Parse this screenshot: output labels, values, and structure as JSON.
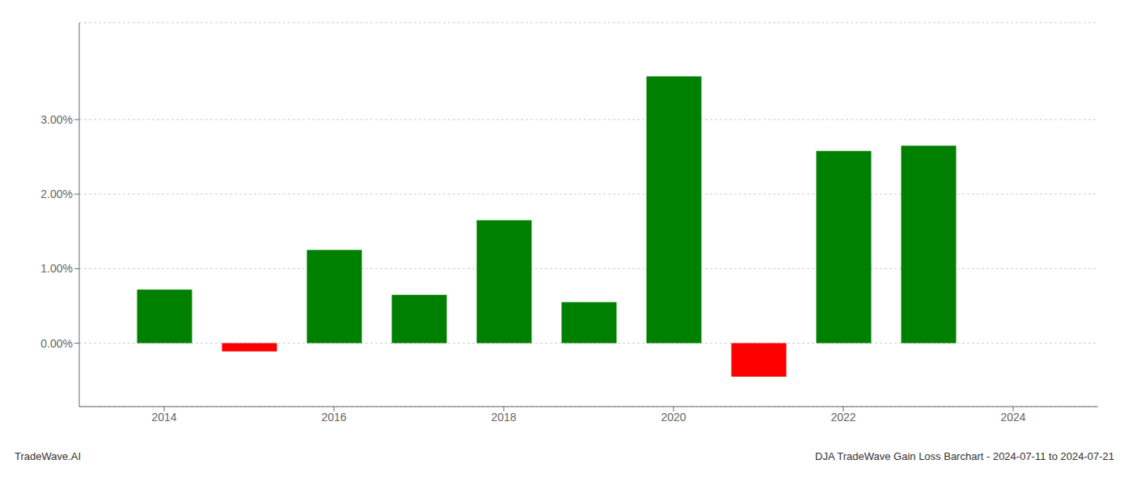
{
  "chart_data": {
    "type": "bar",
    "x": [
      2014,
      2015,
      2016,
      2017,
      2018,
      2019,
      2020,
      2021,
      2022,
      2023
    ],
    "values": [
      0.0072,
      -0.0011,
      0.0125,
      0.0065,
      0.0165,
      0.0055,
      0.0358,
      -0.0045,
      0.0258,
      0.0265
    ],
    "colors": [
      "#008000",
      "#ff0000",
      "#008000",
      "#008000",
      "#008000",
      "#008000",
      "#008000",
      "#ff0000",
      "#008000",
      "#008000"
    ],
    "xlim": [
      2013,
      2025
    ],
    "xticks": [
      2014,
      2016,
      2018,
      2020,
      2022,
      2024
    ],
    "ylim": [
      -0.0085,
      0.043
    ],
    "yticks": [
      {
        "value": 0.0,
        "label": "0.00%"
      },
      {
        "value": 0.01,
        "label": "1.00%"
      },
      {
        "value": 0.02,
        "label": "2.00%"
      },
      {
        "value": 0.03,
        "label": "3.00%"
      }
    ],
    "grid": "y",
    "annotations": [
      "TradeWave.AI",
      "DJA TradeWave Gain Loss Barchart - 2024-07-11 to 2024-07-21"
    ]
  }
}
